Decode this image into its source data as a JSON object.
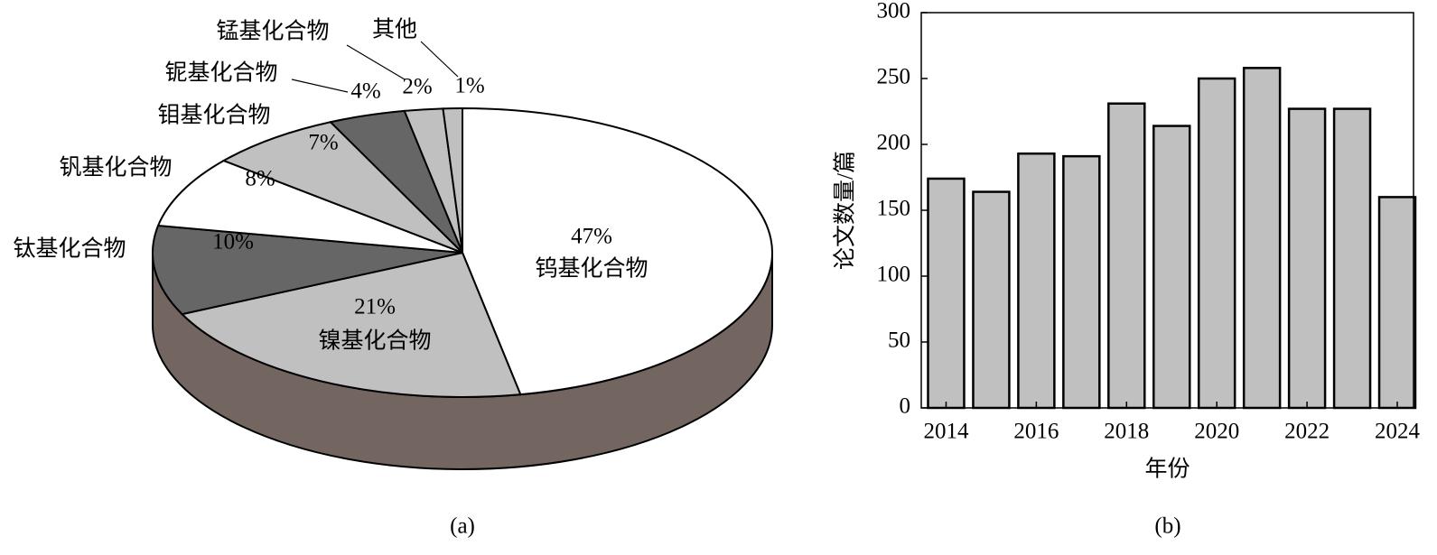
{
  "chart_data": [
    {
      "type": "pie",
      "caption": "(a)",
      "categories": [
        "钨基化合物",
        "镍基化合物",
        "钛基化合物",
        "钒基化合物",
        "钼基化合物",
        "铌基化合物",
        "锰基化合物",
        "其他"
      ],
      "values": [
        47,
        21,
        10,
        8,
        7,
        4,
        2,
        1
      ],
      "value_labels": [
        "47%",
        "21%",
        "10%",
        "8%",
        "7%",
        "4%",
        "2%",
        "1%"
      ],
      "colors": [
        "#ffffff",
        "#c0c0c0",
        "#666666",
        "#ffffff",
        "#c0c0c0",
        "#666666",
        "#c0c0c0",
        "#c0c0c0"
      ]
    },
    {
      "type": "bar",
      "caption": "(b)",
      "xlabel": "年份",
      "ylabel": "论文数量/篇",
      "x": [
        2014,
        2015,
        2016,
        2017,
        2018,
        2019,
        2020,
        2021,
        2022,
        2023,
        2024
      ],
      "values": [
        174,
        164,
        193,
        191,
        231,
        214,
        250,
        258,
        227,
        227,
        160
      ],
      "color": "#c0c0c0",
      "xlim": [
        2013.45,
        2024.36
      ],
      "xticks": [
        2014,
        2016,
        2018,
        2020,
        2022,
        2024
      ],
      "ylim": [
        0,
        300
      ],
      "yticks": [
        0,
        50,
        100,
        150,
        200,
        250,
        300
      ]
    }
  ]
}
